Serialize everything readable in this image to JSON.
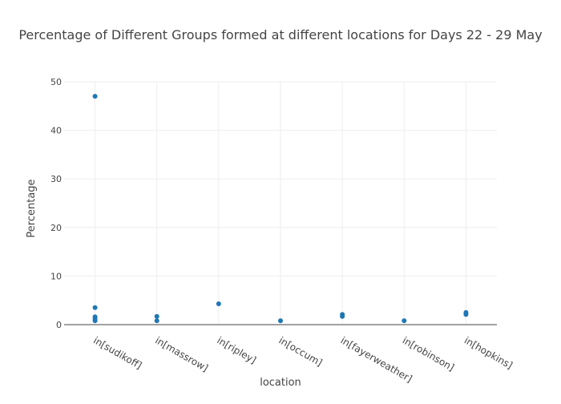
{
  "chart_data": {
    "type": "scatter",
    "title": "Percentage of Different Groups formed at different locations for Days 22 - 29 May",
    "xlabel": "location",
    "ylabel": "Percentage",
    "categories": [
      "in[sudikoff]",
      "in[massrow]",
      "in[ripley]",
      "in[occum]",
      "in[fayerweather]",
      "in[robinson]",
      "in[hopkins]"
    ],
    "ylim": [
      0,
      50
    ],
    "yticks": [
      0,
      10,
      20,
      30,
      40,
      50
    ],
    "grid": true,
    "color": "#1f77b4",
    "points": [
      {
        "x": "in[sudikoff]",
        "y": 47.0
      },
      {
        "x": "in[sudikoff]",
        "y": 3.5
      },
      {
        "x": "in[sudikoff]",
        "y": 1.6
      },
      {
        "x": "in[sudikoff]",
        "y": 1.2
      },
      {
        "x": "in[sudikoff]",
        "y": 0.8
      },
      {
        "x": "in[massrow]",
        "y": 1.7
      },
      {
        "x": "in[massrow]",
        "y": 0.8
      },
      {
        "x": "in[ripley]",
        "y": 4.3
      },
      {
        "x": "in[occum]",
        "y": 0.8
      },
      {
        "x": "in[fayerweather]",
        "y": 2.1
      },
      {
        "x": "in[fayerweather]",
        "y": 1.7
      },
      {
        "x": "in[robinson]",
        "y": 0.8
      },
      {
        "x": "in[hopkins]",
        "y": 2.5
      },
      {
        "x": "in[hopkins]",
        "y": 2.1
      }
    ]
  }
}
